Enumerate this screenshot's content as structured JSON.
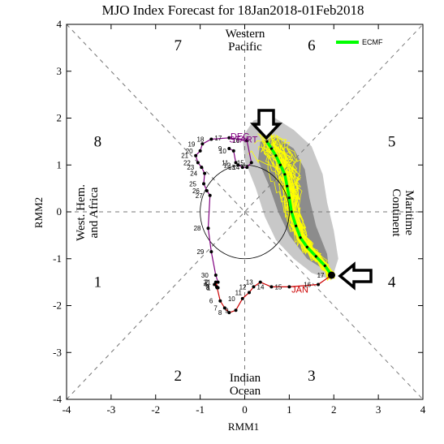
{
  "chart_data": {
    "type": "scatter",
    "title": "MJO Index Forecast for 18Jan2018-01Feb2018",
    "xlabel": "RMM1",
    "ylabel": "RMM2",
    "xlim": [
      -4,
      4
    ],
    "ylim": [
      -4,
      4
    ],
    "xticks": [
      "-4",
      "-3",
      "-2",
      "-1",
      "0",
      "1",
      "2",
      "3",
      "4"
    ],
    "yticks": [
      "-4",
      "-3",
      "-2",
      "-1",
      "0",
      "1",
      "2",
      "3",
      "4"
    ],
    "grid": false,
    "legend": {
      "position": "top-right",
      "entries": [
        {
          "name": "ECMF",
          "color": "#00ff00"
        }
      ]
    },
    "colors": {
      "dec": "#800080",
      "jan": "#cc0000",
      "ecmf": "#00ff00",
      "ensemble": "#ffff00",
      "spread_dark": "#8c8c8c",
      "spread_light": "#c8c8c8"
    },
    "phase_labels": [
      {
        "text": "1",
        "x": -3.3,
        "y": -1.5
      },
      {
        "text": "2",
        "x": -1.5,
        "y": -3.5
      },
      {
        "text": "3",
        "x": 1.5,
        "y": -3.5
      },
      {
        "text": "4",
        "x": 3.3,
        "y": -1.5
      },
      {
        "text": "5",
        "x": 3.3,
        "y": 1.5
      },
      {
        "text": "6",
        "x": 1.5,
        "y": 3.55
      },
      {
        "text": "7",
        "x": -1.5,
        "y": 3.55
      },
      {
        "text": "8",
        "x": -3.3,
        "y": 1.5
      }
    ],
    "regions": {
      "western_pacific": [
        "Western",
        "Pacific"
      ],
      "indian_ocean": [
        "Indian",
        "Ocean"
      ],
      "maritime_continent": [
        "Maritime",
        "Continent"
      ],
      "west_hem_africa": [
        "West. Hem.",
        "and Africa"
      ]
    },
    "month_labels": [
      {
        "text": "DEC",
        "x": -0.32,
        "y": 1.55,
        "series": "dec"
      },
      {
        "text": "START",
        "x": -0.35,
        "y": 1.48,
        "series": "dec"
      },
      {
        "text": "JAN",
        "x": 1.05,
        "y": -1.72,
        "series": "jan"
      }
    ],
    "series": [
      {
        "name": "DEC",
        "color": "#800080",
        "days": [
          "9",
          "10",
          "11",
          "12",
          "13",
          "14",
          "15",
          "16",
          "17",
          "18",
          "19",
          "20",
          "21",
          "22",
          "23",
          "24",
          "25",
          "26",
          "27",
          "28",
          "29",
          "30",
          "31"
        ],
        "x": [
          -0.35,
          -0.25,
          -0.2,
          -0.15,
          -0.05,
          0.05,
          0.15,
          0.05,
          -0.35,
          -0.75,
          -0.95,
          -1.0,
          -1.1,
          -1.05,
          -0.97,
          -0.9,
          -0.92,
          -0.85,
          -0.78,
          -0.82,
          -0.75,
          -0.65,
          -0.6
        ],
        "y": [
          1.35,
          1.3,
          1.05,
          1.0,
          0.95,
          0.95,
          1.05,
          1.52,
          1.58,
          1.55,
          1.45,
          1.3,
          1.2,
          1.05,
          0.95,
          0.82,
          0.6,
          0.45,
          0.35,
          -0.35,
          -0.85,
          -1.35,
          -1.5
        ]
      },
      {
        "name": "JAN",
        "color": "#cc0000",
        "days": [
          "1",
          "2",
          "3",
          "4",
          "5",
          "6",
          "7",
          "8",
          "9",
          "10",
          "11",
          "12",
          "13",
          "14",
          "15",
          "16",
          "17"
        ],
        "x": [
          -0.6,
          -0.65,
          -0.63,
          -0.68,
          -0.62,
          -0.55,
          -0.45,
          -0.35,
          -0.2,
          -0.05,
          0.1,
          0.2,
          0.35,
          0.6,
          1.0,
          1.65,
          1.95
        ],
        "y": [
          -1.62,
          -1.5,
          -1.6,
          -1.55,
          -1.62,
          -1.9,
          -2.05,
          -2.15,
          -2.1,
          -1.85,
          -1.72,
          -1.6,
          -1.5,
          -1.6,
          -1.6,
          -1.55,
          -1.35
        ]
      },
      {
        "name": "ECMF",
        "color": "#00ff00",
        "x": [
          1.95,
          1.8,
          1.6,
          1.4,
          1.25,
          1.15,
          1.05,
          1.0,
          0.95,
          0.9,
          0.8,
          0.7,
          0.6,
          0.5
        ],
        "y": [
          -1.35,
          -1.15,
          -0.95,
          -0.75,
          -0.55,
          -0.3,
          0.0,
          0.3,
          0.55,
          0.8,
          1.0,
          1.2,
          1.35,
          1.5
        ]
      }
    ],
    "ecmf_label": "ECMF",
    "day_labels_shown": [
      "29",
      "30",
      "31",
      "1",
      "2",
      "3",
      "4",
      "5",
      "6",
      "7",
      "8",
      "9",
      "10",
      "11",
      "12",
      "13",
      "14",
      "15",
      "16",
      "17",
      "18",
      "19",
      "20",
      "21",
      "22",
      "23",
      "24",
      "25",
      "26",
      "27",
      "28"
    ]
  }
}
